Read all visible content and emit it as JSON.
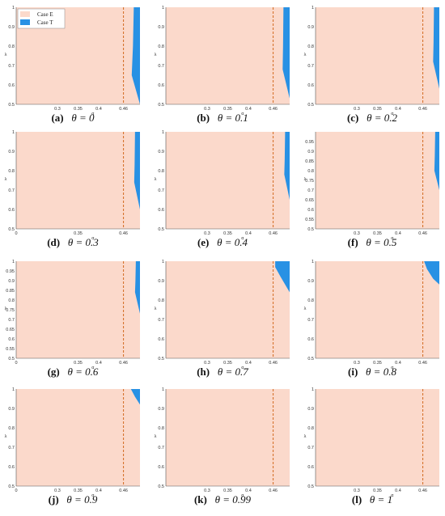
{
  "legend": {
    "entries": [
      {
        "label": "Case E",
        "color": "#fbd9cb"
      },
      {
        "label": "Case T",
        "color": "#2891e4"
      }
    ]
  },
  "colors": {
    "case_e": "#fbd9cb",
    "case_t": "#2891e4",
    "dashed_line": "#d2691e",
    "axis": "#555555"
  },
  "chart_data": [
    {
      "type": "area",
      "label": "(a)",
      "theta_expr": "θ = 0",
      "xlabel": "α",
      "ylabel": "λ",
      "xlim": [
        0.2,
        0.5
      ],
      "ylim": [
        0.5,
        1
      ],
      "x_ticks": [
        "0.3",
        "0.35",
        "0.4",
        "0.46"
      ],
      "y_ticks": [
        "0.5",
        "0.6",
        "0.7",
        "0.8",
        "0.9",
        "1"
      ],
      "dashed_x": 0.46,
      "boundary": [
        [
          0.485,
          1
        ],
        [
          0.483,
          0.8
        ],
        [
          0.48,
          0.65
        ],
        [
          0.5,
          0.5
        ]
      ]
    },
    {
      "type": "area",
      "label": "(b)",
      "theta_expr": "θ = 0.1",
      "xlabel": "α",
      "ylabel": "λ",
      "xlim": [
        0.2,
        0.5
      ],
      "ylim": [
        0.5,
        1
      ],
      "x_ticks": [
        "0.3",
        "0.35",
        "0.4",
        "0.46"
      ],
      "y_ticks": [
        "0.5",
        "0.6",
        "0.7",
        "0.8",
        "0.9",
        "1"
      ],
      "dashed_x": 0.46,
      "boundary": [
        [
          0.485,
          1
        ],
        [
          0.484,
          0.8
        ],
        [
          0.483,
          0.68
        ],
        [
          0.5,
          0.53
        ]
      ]
    },
    {
      "type": "area",
      "label": "(c)",
      "theta_expr": "θ = 0.2",
      "xlabel": "α",
      "ylabel": "λ",
      "xlim": [
        0.2,
        0.5
      ],
      "ylim": [
        0.5,
        1
      ],
      "x_ticks": [
        "0.3",
        "0.35",
        "0.4",
        "0.46"
      ],
      "y_ticks": [
        "0.5",
        "0.6",
        "0.7",
        "0.8",
        "0.9",
        "1"
      ],
      "dashed_x": 0.46,
      "boundary": [
        [
          0.487,
          1
        ],
        [
          0.486,
          0.82
        ],
        [
          0.485,
          0.72
        ],
        [
          0.5,
          0.58
        ]
      ]
    },
    {
      "type": "area",
      "label": "(d)",
      "theta_expr": "θ = 0.3",
      "xlabel": "α",
      "ylabel": "λ",
      "xlim": [
        0.2,
        0.5
      ],
      "ylim": [
        0.5,
        1
      ],
      "x_ticks": [
        "0",
        "0.35",
        "0.46"
      ],
      "y_ticks": [
        "0.5",
        "0.6",
        "0.7",
        "0.8",
        "0.9",
        "1"
      ],
      "dashed_x": 0.46,
      "boundary": [
        [
          0.488,
          1
        ],
        [
          0.487,
          0.83
        ],
        [
          0.486,
          0.74
        ],
        [
          0.5,
          0.6
        ]
      ]
    },
    {
      "type": "area",
      "label": "(e)",
      "theta_expr": "θ = 0.4",
      "xlabel": "α",
      "ylabel": "λ",
      "xlim": [
        0.2,
        0.5
      ],
      "ylim": [
        0.5,
        1
      ],
      "x_ticks": [
        "0.3",
        "0.35",
        "0.4",
        "0.46"
      ],
      "y_ticks": [
        "0.5",
        "0.6",
        "0.7",
        "0.8",
        "0.9",
        "1"
      ],
      "dashed_x": 0.46,
      "boundary": [
        [
          0.489,
          1
        ],
        [
          0.488,
          0.86
        ],
        [
          0.487,
          0.78
        ],
        [
          0.5,
          0.65
        ]
      ]
    },
    {
      "type": "area",
      "label": "(f)",
      "theta_expr": "θ = 0.5",
      "xlabel": "α",
      "ylabel": "λ",
      "xlim": [
        0.2,
        0.5
      ],
      "ylim": [
        0.5,
        1
      ],
      "x_ticks": [
        "0.3",
        "0.35",
        "0.4",
        "0.46"
      ],
      "y_ticks": [
        "0.5",
        "0.55",
        "0.6",
        "0.65",
        "0.7",
        "0.75",
        "0.8",
        "0.85",
        "0.9",
        "0.95"
      ],
      "dashed_x": 0.46,
      "boundary": [
        [
          0.49,
          1
        ],
        [
          0.489,
          0.88
        ],
        [
          0.488,
          0.8
        ],
        [
          0.5,
          0.7
        ]
      ]
    },
    {
      "type": "area",
      "label": "(g)",
      "theta_expr": "θ = 0.6",
      "xlabel": "α",
      "ylabel": "λ",
      "xlim": [
        0.2,
        0.5
      ],
      "ylim": [
        0.5,
        1
      ],
      "x_ticks": [
        "0",
        "0.35",
        "0.4",
        "0.46"
      ],
      "y_ticks": [
        "0.5",
        "0.55",
        "0.6",
        "0.65",
        "0.7",
        "0.75",
        "0.8",
        "0.85",
        "0.9",
        "0.95",
        "1"
      ],
      "dashed_x": 0.46,
      "boundary": [
        [
          0.49,
          1
        ],
        [
          0.489,
          0.9
        ],
        [
          0.488,
          0.84
        ],
        [
          0.5,
          0.73
        ]
      ]
    },
    {
      "type": "area",
      "label": "(h)",
      "theta_expr": "θ = 0.7",
      "xlabel": "α",
      "ylabel": "λ",
      "xlim": [
        0.2,
        0.5
      ],
      "ylim": [
        0.5,
        1
      ],
      "x_ticks": [
        "0.3",
        "0.35",
        "0.4",
        "0.46"
      ],
      "y_ticks": [
        "0.5",
        "0.6",
        "0.7",
        "0.8",
        "0.9",
        "1"
      ],
      "dashed_x": 0.46,
      "boundary": [
        [
          0.465,
          1
        ],
        [
          0.465,
          0.97
        ],
        [
          0.478,
          0.92
        ],
        [
          0.5,
          0.84
        ]
      ]
    },
    {
      "type": "area",
      "label": "(i)",
      "theta_expr": "θ = 0.8",
      "xlabel": "α",
      "ylabel": "λ",
      "xlim": [
        0.2,
        0.5
      ],
      "ylim": [
        0.5,
        1
      ],
      "x_ticks": [
        "0.3",
        "0.35",
        "0.4",
        "0.46"
      ],
      "y_ticks": [
        "0.5",
        "0.6",
        "0.7",
        "0.8",
        "0.9",
        "1"
      ],
      "dashed_x": 0.46,
      "boundary": [
        [
          0.463,
          1
        ],
        [
          0.47,
          0.96
        ],
        [
          0.485,
          0.91
        ],
        [
          0.5,
          0.88
        ]
      ]
    },
    {
      "type": "area",
      "label": "(j)",
      "theta_expr": "θ = 0.9",
      "xlabel": "α",
      "ylabel": "λ",
      "xlim": [
        0.2,
        0.5
      ],
      "ylim": [
        0.5,
        1
      ],
      "x_ticks": [
        "0",
        "0.3",
        "0.35",
        "0.4",
        "0.46"
      ],
      "y_ticks": [
        "0.5",
        "0.6",
        "0.7",
        "0.8",
        "0.9",
        "1"
      ],
      "dashed_x": 0.46,
      "boundary": [
        [
          0.478,
          1
        ],
        [
          0.488,
          0.96
        ],
        [
          0.5,
          0.92
        ]
      ]
    },
    {
      "type": "area",
      "label": "(k)",
      "theta_expr": "θ = 0.99",
      "xlabel": "α",
      "ylabel": "λ",
      "xlim": [
        0.2,
        0.5
      ],
      "ylim": [
        0.5,
        1
      ],
      "x_ticks": [
        "0.3",
        "0.35",
        "0.4",
        "0.46"
      ],
      "y_ticks": [
        "0.5",
        "0.6",
        "0.7",
        "0.8",
        "0.9",
        "1"
      ],
      "dashed_x": 0.46,
      "boundary": []
    },
    {
      "type": "area",
      "label": "(l)",
      "theta_expr": "θ = 1",
      "xlabel": "α",
      "ylabel": "λ",
      "xlim": [
        0.2,
        0.5
      ],
      "ylim": [
        0.5,
        1
      ],
      "x_ticks": [
        "0.3",
        "0.35",
        "0.4",
        "0.46"
      ],
      "y_ticks": [
        "0.5",
        "0.6",
        "0.7",
        "0.8",
        "0.9",
        "1"
      ],
      "dashed_x": 0.46,
      "boundary": []
    }
  ]
}
